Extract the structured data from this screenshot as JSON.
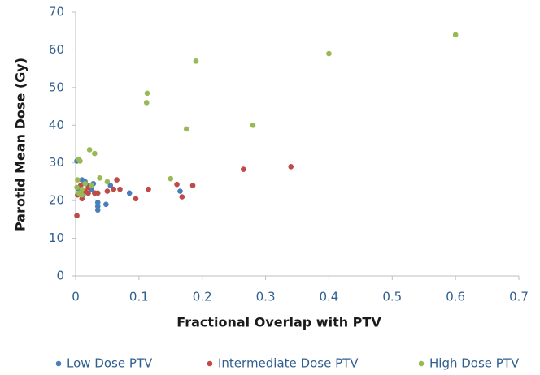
{
  "chart_data": {
    "type": "scatter",
    "x_label": "Fractional Overlap with PTV",
    "y_label": "Parotid Mean Dose (Gy)",
    "xlim": [
      0,
      0.7
    ],
    "ylim": [
      0,
      70
    ],
    "xticks": [
      0,
      0.1,
      0.2,
      0.3,
      0.4,
      0.5,
      0.6,
      0.7
    ],
    "yticks": [
      0,
      10,
      20,
      30,
      40,
      50,
      60,
      70
    ],
    "grid": false,
    "legend": "bottom",
    "series": [
      {
        "name": "Low Dose PTV",
        "color": "#4a7ebb",
        "x": [
          0.002,
          0.005,
          0.01,
          0.015,
          0.02,
          0.025,
          0.03,
          0.035,
          0.035,
          0.035,
          0.048,
          0.055,
          0.085,
          0.165,
          0.012,
          0.028
        ],
        "values": [
          30.5,
          23,
          25.5,
          25,
          24,
          23,
          22,
          19.5,
          18.5,
          17.5,
          19,
          24,
          22,
          22.5,
          21.5,
          24.5
        ]
      },
      {
        "name": "Intermediate Dose PTV",
        "color": "#be4b48",
        "x": [
          0.002,
          0.003,
          0.01,
          0.015,
          0.02,
          0.025,
          0.03,
          0.035,
          0.05,
          0.06,
          0.065,
          0.07,
          0.095,
          0.115,
          0.16,
          0.168,
          0.185,
          0.265,
          0.34,
          0.02,
          0.008
        ],
        "values": [
          16,
          21.5,
          20.5,
          22.5,
          23.5,
          24,
          22,
          22,
          22.5,
          23,
          25.5,
          23,
          20.5,
          23,
          24.3,
          21,
          24,
          28.3,
          29,
          22,
          24
        ]
      },
      {
        "name": "High Dose PTV",
        "color": "#98b954",
        "x": [
          0.6,
          0.4,
          0.19,
          0.113,
          0.112,
          0.175,
          0.28,
          0.15,
          0.005,
          0.007,
          0.022,
          0.03,
          0.038,
          0.05,
          0.003,
          0.01,
          0.005,
          0.01,
          0.025,
          0.015,
          0.002
        ],
        "values": [
          64,
          59,
          57,
          48.5,
          46,
          39,
          40,
          25.8,
          31,
          30.5,
          33.5,
          32.5,
          26,
          25,
          25.5,
          23,
          22,
          21.5,
          24,
          24.5,
          23.5
        ]
      }
    ]
  }
}
